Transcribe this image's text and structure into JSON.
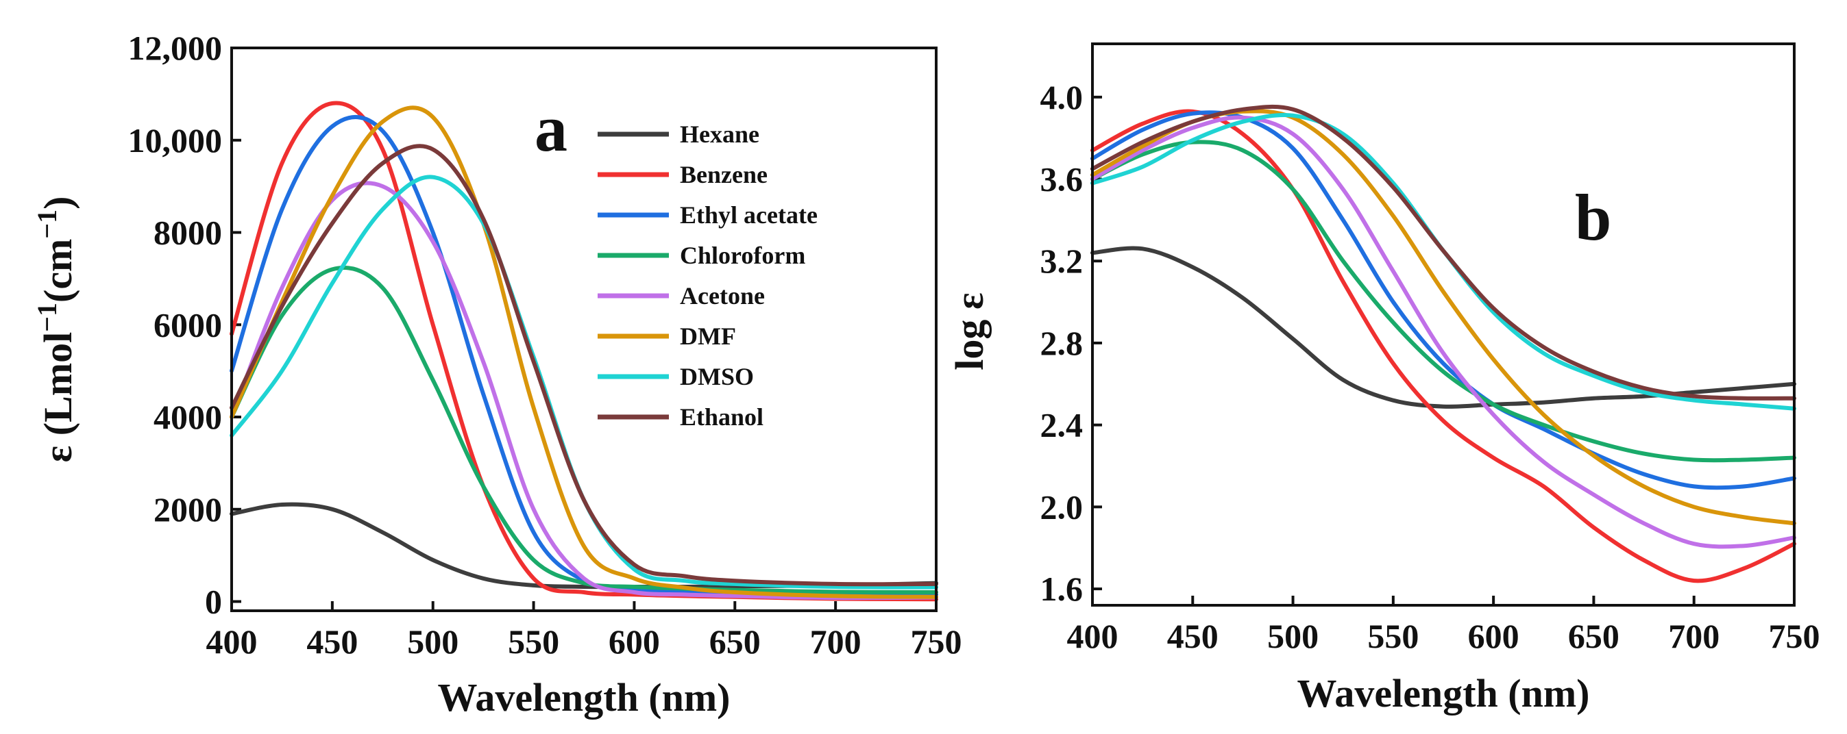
{
  "chart_data": [
    {
      "type": "line",
      "panel": "a",
      "xlabel": "Wavelength (nm)",
      "ylabel": {
        "prefix": "ε (Lmol",
        "sup1": "−1",
        "mid": "(cm",
        "sup2": "−1",
        "suffix": ")"
      },
      "xlim": [
        400,
        750
      ],
      "ylim": [
        -200,
        12000
      ],
      "xticks": [
        400,
        450,
        500,
        550,
        600,
        650,
        700,
        750
      ],
      "yticks": [
        0,
        2000,
        4000,
        6000,
        8000,
        10000,
        12000
      ],
      "xtick_labels": [
        "400",
        "450",
        "500",
        "550",
        "600",
        "650",
        "700",
        "750"
      ],
      "ytick_labels": [
        "0",
        "2000",
        "4000",
        "6000",
        "8000",
        "10,000",
        "12,000"
      ],
      "legend_position": "top-right",
      "x": [
        400,
        425,
        450,
        475,
        500,
        525,
        550,
        575,
        600,
        625,
        650,
        700,
        750
      ],
      "series": [
        {
          "name": "Hexane",
          "color": "#3d3d3d",
          "values": [
            1900,
            2100,
            2000,
            1500,
            900,
            500,
            350,
            320,
            320,
            320,
            330,
            350,
            400
          ]
        },
        {
          "name": "Benzene",
          "color": "#f03030",
          "values": [
            5800,
            9500,
            10800,
            9800,
            6000,
            2500,
            500,
            200,
            150,
            120,
            100,
            60,
            50
          ]
        },
        {
          "name": "Ethyl acetate",
          "color": "#1f6fe0",
          "values": [
            5000,
            8500,
            10300,
            10200,
            8000,
            4500,
            1500,
            450,
            250,
            200,
            170,
            130,
            150
          ]
        },
        {
          "name": "Chloroform",
          "color": "#1aaa6a",
          "values": [
            4000,
            6200,
            7200,
            6800,
            4800,
            2500,
            900,
            400,
            320,
            280,
            250,
            210,
            200
          ]
        },
        {
          "name": "Acetone",
          "color": "#c070e8",
          "values": [
            4000,
            6800,
            8700,
            9000,
            7800,
            5200,
            2000,
            500,
            200,
            150,
            120,
            80,
            90
          ]
        },
        {
          "name": "DMF",
          "color": "#d9950a",
          "values": [
            4000,
            6500,
            8800,
            10400,
            10500,
            8200,
            4200,
            1200,
            500,
            300,
            200,
            120,
            100
          ]
        },
        {
          "name": "DMSO",
          "color": "#1fd3d3",
          "values": [
            3600,
            5000,
            6900,
            8500,
            9200,
            8200,
            5300,
            2200,
            700,
            450,
            380,
            320,
            310
          ]
        },
        {
          "name": "Ethanol",
          "color": "#7a3a3a",
          "values": [
            4200,
            6400,
            8200,
            9500,
            9800,
            8300,
            5200,
            2200,
            800,
            550,
            450,
            380,
            380
          ]
        }
      ]
    },
    {
      "type": "line",
      "panel": "b",
      "xlabel": "Wavelength (nm)",
      "ylabel": "log ε",
      "xlim": [
        400,
        750
      ],
      "ylim": [
        1.52,
        4.26
      ],
      "xticks": [
        400,
        450,
        500,
        550,
        600,
        650,
        700,
        750
      ],
      "yticks": [
        1.6,
        2.0,
        2.4,
        2.8,
        3.2,
        3.6,
        4.0
      ],
      "xtick_labels": [
        "400",
        "450",
        "500",
        "550",
        "600",
        "650",
        "700",
        "750"
      ],
      "ytick_labels": [
        "1.6",
        "2.0",
        "2.4",
        "2.8",
        "3.2",
        "3.6",
        "4.0"
      ],
      "x": [
        400,
        425,
        450,
        475,
        500,
        525,
        550,
        575,
        600,
        625,
        650,
        675,
        700,
        725,
        750
      ],
      "series": [
        {
          "name": "Hexane",
          "color": "#3d3d3d",
          "values": [
            3.24,
            3.26,
            3.17,
            3.02,
            2.82,
            2.62,
            2.52,
            2.49,
            2.5,
            2.51,
            2.53,
            2.54,
            2.56,
            2.58,
            2.6
          ]
        },
        {
          "name": "Benzene",
          "color": "#f03030",
          "values": [
            3.74,
            3.87,
            3.93,
            3.82,
            3.55,
            3.1,
            2.7,
            2.42,
            2.24,
            2.1,
            1.9,
            1.74,
            1.64,
            1.7,
            1.82
          ]
        },
        {
          "name": "Ethyl acetate",
          "color": "#1f6fe0",
          "values": [
            3.7,
            3.84,
            3.92,
            3.9,
            3.75,
            3.4,
            3.0,
            2.7,
            2.5,
            2.38,
            2.26,
            2.16,
            2.1,
            2.1,
            2.14
          ]
        },
        {
          "name": "Chloroform",
          "color": "#1aaa6a",
          "values": [
            3.6,
            3.72,
            3.78,
            3.74,
            3.55,
            3.2,
            2.9,
            2.66,
            2.5,
            2.4,
            2.32,
            2.26,
            2.23,
            2.23,
            2.24
          ]
        },
        {
          "name": "Acetone",
          "color": "#c070e8",
          "values": [
            3.6,
            3.74,
            3.85,
            3.9,
            3.82,
            3.55,
            3.15,
            2.75,
            2.45,
            2.22,
            2.06,
            1.92,
            1.82,
            1.81,
            1.85
          ]
        },
        {
          "name": "DMF",
          "color": "#d9950a",
          "values": [
            3.62,
            3.76,
            3.88,
            3.93,
            3.9,
            3.72,
            3.42,
            3.05,
            2.72,
            2.45,
            2.25,
            2.1,
            2.0,
            1.95,
            1.92
          ]
        },
        {
          "name": "DMSO",
          "color": "#1fd3d3",
          "values": [
            3.58,
            3.66,
            3.79,
            3.88,
            3.91,
            3.82,
            3.58,
            3.25,
            2.95,
            2.75,
            2.64,
            2.56,
            2.52,
            2.5,
            2.48
          ]
        },
        {
          "name": "Ethanol",
          "color": "#7a3a3a",
          "values": [
            3.65,
            3.78,
            3.88,
            3.94,
            3.94,
            3.8,
            3.56,
            3.25,
            2.97,
            2.78,
            2.66,
            2.58,
            2.54,
            2.53,
            2.53
          ]
        }
      ]
    }
  ]
}
